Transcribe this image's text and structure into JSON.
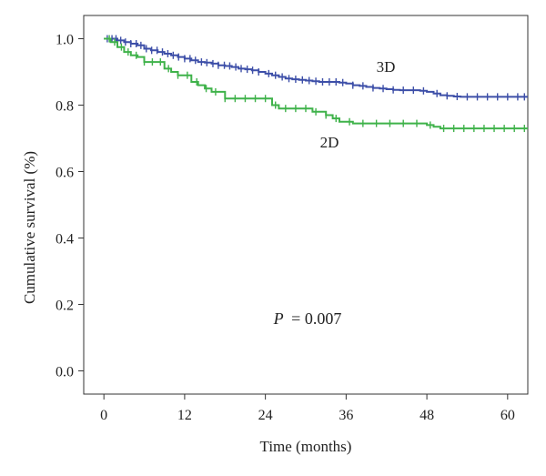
{
  "chart_data": {
    "type": "line",
    "title": "",
    "xlabel": "Time (months)",
    "ylabel": "Cumulative survival  (%)",
    "xlim": [
      -3,
      63
    ],
    "ylim": [
      -0.07,
      1.07
    ],
    "xticks": [
      0,
      12,
      24,
      36,
      48,
      60
    ],
    "xtick_labels": [
      "0",
      "12",
      "24",
      "36",
      "48",
      "60"
    ],
    "yticks": [
      0.0,
      0.2,
      0.4,
      0.6,
      0.8,
      1.0
    ],
    "ytick_labels": [
      "0.0",
      "0.2",
      "0.4",
      "0.6",
      "0.8",
      "1.0"
    ],
    "grid": false,
    "series": [
      {
        "name": "3D",
        "label": "3D",
        "color": "#3d4fa8",
        "x": [
          0,
          1,
          2,
          3,
          4,
          5,
          6,
          7,
          8,
          9,
          10,
          11,
          12,
          13,
          14,
          15,
          16,
          17,
          18,
          19,
          20,
          21,
          22,
          23,
          24,
          25,
          26,
          27,
          28,
          29,
          30,
          31,
          32,
          33,
          34,
          35,
          36,
          37,
          38,
          39,
          40,
          41,
          42,
          43,
          44,
          45,
          46,
          47,
          48,
          49,
          50,
          51,
          52,
          53,
          54,
          55,
          56,
          57,
          58,
          59,
          60,
          61,
          62,
          63
        ],
        "y": [
          1.0,
          1.0,
          0.995,
          0.99,
          0.985,
          0.98,
          0.97,
          0.965,
          0.96,
          0.955,
          0.95,
          0.945,
          0.94,
          0.935,
          0.93,
          0.928,
          0.925,
          0.92,
          0.918,
          0.915,
          0.91,
          0.908,
          0.905,
          0.9,
          0.895,
          0.89,
          0.885,
          0.88,
          0.878,
          0.876,
          0.874,
          0.872,
          0.87,
          0.87,
          0.87,
          0.868,
          0.865,
          0.86,
          0.858,
          0.855,
          0.852,
          0.85,
          0.848,
          0.846,
          0.845,
          0.845,
          0.845,
          0.843,
          0.84,
          0.835,
          0.83,
          0.828,
          0.826,
          0.825,
          0.825,
          0.825,
          0.825,
          0.825,
          0.825,
          0.825,
          0.825,
          0.825,
          0.825,
          0.825
        ],
        "censor_x": [
          0.5,
          1.2,
          1.8,
          2.5,
          3.2,
          4.0,
          4.8,
          5.5,
          6.3,
          7.1,
          7.9,
          8.7,
          9.5,
          10.3,
          11.1,
          12.0,
          12.8,
          13.6,
          14.5,
          15.3,
          16.2,
          17.0,
          17.9,
          18.7,
          19.6,
          20.4,
          21.3,
          22.1,
          23.0,
          24.5,
          25.5,
          26.5,
          27.5,
          28.5,
          29.5,
          30.5,
          31.5,
          32.5,
          33.5,
          34.5,
          35.5,
          37.0,
          38.5,
          40.0,
          41.5,
          43.0,
          44.5,
          46.0,
          47.5,
          49.5,
          51.0,
          52.5,
          54.0,
          55.5,
          57.0,
          58.5,
          60.0,
          61.5,
          62.5
        ]
      },
      {
        "name": "2D",
        "label": "2D",
        "color": "#3fb24a",
        "x": [
          0,
          1,
          2,
          3,
          4,
          5,
          6,
          7,
          8,
          9,
          10,
          11,
          12,
          13,
          14,
          15,
          16,
          17,
          18,
          19,
          20,
          21,
          22,
          23,
          24,
          25,
          26,
          27,
          28,
          29,
          30,
          31,
          32,
          33,
          34,
          35,
          36,
          37,
          38,
          39,
          40,
          41,
          42,
          43,
          44,
          45,
          46,
          47,
          48,
          49,
          50,
          51,
          52,
          53,
          54,
          55,
          56,
          57,
          58,
          59,
          60,
          61,
          62,
          63
        ],
        "y": [
          1.0,
          0.99,
          0.975,
          0.96,
          0.95,
          0.945,
          0.93,
          0.93,
          0.93,
          0.91,
          0.9,
          0.89,
          0.89,
          0.87,
          0.86,
          0.85,
          0.84,
          0.84,
          0.82,
          0.82,
          0.82,
          0.82,
          0.82,
          0.82,
          0.82,
          0.8,
          0.79,
          0.79,
          0.79,
          0.79,
          0.79,
          0.78,
          0.78,
          0.77,
          0.76,
          0.75,
          0.75,
          0.745,
          0.745,
          0.745,
          0.745,
          0.745,
          0.745,
          0.745,
          0.745,
          0.745,
          0.745,
          0.745,
          0.74,
          0.735,
          0.73,
          0.73,
          0.73,
          0.73,
          0.73,
          0.73,
          0.73,
          0.73,
          0.73,
          0.73,
          0.73,
          0.73,
          0.73,
          0.73
        ],
        "censor_x": [
          0.8,
          1.6,
          2.6,
          3.6,
          4.8,
          6.0,
          7.2,
          8.4,
          9.6,
          11.0,
          12.4,
          13.8,
          15.2,
          16.6,
          18.0,
          19.5,
          21.0,
          22.5,
          24.0,
          25.5,
          27.0,
          28.5,
          30.0,
          31.5,
          33.0,
          34.5,
          36.5,
          38.5,
          40.5,
          42.5,
          44.5,
          46.5,
          48.5,
          50.5,
          52.0,
          53.5,
          55.0,
          56.5,
          58.0,
          59.5,
          61.0,
          62.5
        ]
      }
    ],
    "annotations": [
      {
        "name": "p-value",
        "text_italic": "P",
        "text": "= 0.007",
        "x": 36,
        "y": 0.17
      }
    ]
  }
}
